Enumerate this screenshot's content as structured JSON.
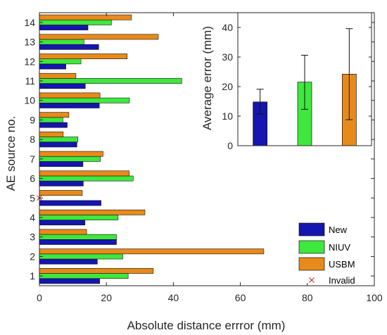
{
  "chart_data": [
    {
      "type": "bar",
      "orientation": "horizontal",
      "xlabel": "Absolute distance errror (mm)",
      "ylabel": "AE source no.",
      "xlim": [
        0,
        100
      ],
      "xticks": [
        "0",
        "20",
        "40",
        "60",
        "80",
        "100"
      ],
      "categories": [
        "1",
        "2",
        "3",
        "4",
        "5",
        "6",
        "7",
        "8",
        "9",
        "10",
        "11",
        "12",
        "13",
        "14"
      ],
      "series": [
        {
          "name": "New",
          "color": "#1515b0",
          "values": [
            18,
            17.3,
            23,
            13.6,
            18.4,
            13.1,
            13,
            11.2,
            8.3,
            17.9,
            13.7,
            7.9,
            17.7,
            14.5
          ]
        },
        {
          "name": "NIUV",
          "color": "#3ee83e",
          "values": [
            26.5,
            24.9,
            23,
            23.5,
            0,
            28,
            18.2,
            11.5,
            7,
            26.9,
            42.5,
            12.4,
            13.3,
            21.5
          ]
        },
        {
          "name": "USBM",
          "color": "#e88a1a",
          "values": [
            34,
            67,
            14.1,
            31.5,
            12.8,
            26.8,
            19,
            7.1,
            8.8,
            18.1,
            10.9,
            26.2,
            35.5,
            27.5
          ]
        }
      ],
      "invalid": {
        "name": "Invalid",
        "color": "#c03020",
        "points": [
          {
            "category": "5",
            "series": "NIUV",
            "value": 0
          }
        ]
      },
      "legend": {
        "placement": "bottom-right",
        "entries": [
          "New",
          "NIUV",
          "USBM",
          "Invalid"
        ]
      }
    },
    {
      "type": "bar",
      "ylabel": "Average error (mm)",
      "ylim": [
        0,
        45
      ],
      "yticks": [
        "0",
        "10",
        "20",
        "30",
        "40"
      ],
      "categories": [
        "New",
        "NIUV",
        "USBM"
      ],
      "values": [
        14.8,
        21.5,
        24.2
      ],
      "error_low": [
        10.7,
        12.3,
        8.8
      ],
      "error_high": [
        19.1,
        30.6,
        39.6
      ],
      "colors": [
        "#1515b0",
        "#3ee83e",
        "#e88a1a"
      ]
    }
  ]
}
